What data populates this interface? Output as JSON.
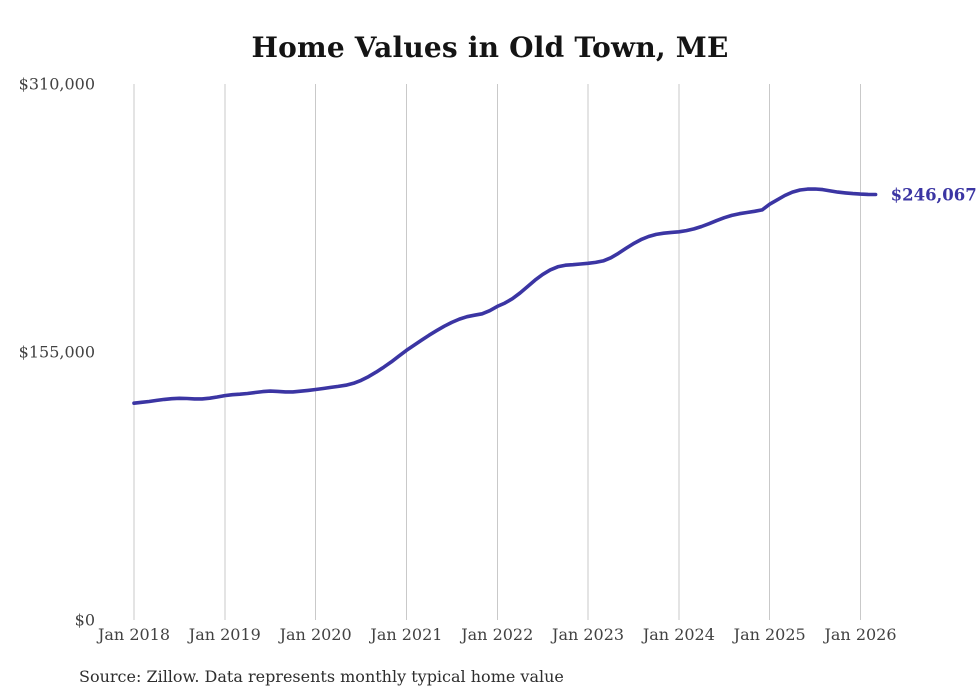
{
  "page": {
    "title": "Home Values in Old Town, ME",
    "source_note": "Source: Zillow. Data represents monthly typical home value"
  },
  "chart_data": {
    "type": "line",
    "title": "Home Values in Old Town, ME",
    "series_name": "Monthly typical home value",
    "x_tick_labels": [
      "Jan 2018",
      "Jan 2019",
      "Jan 2020",
      "Jan 2021",
      "Jan 2022",
      "Jan 2023",
      "Jan 2024",
      "Jan 2025",
      "Jan 2026"
    ],
    "y_ticks": [
      {
        "label": "$0",
        "value": 0
      },
      {
        "label": "$155,000",
        "value": 155000
      },
      {
        "label": "$310,000",
        "value": 310000
      }
    ],
    "ylim": [
      0,
      310000
    ],
    "grid": "vertical-only",
    "grid_color": "#c9c9c9",
    "line_color": "#3b35a3",
    "tick_color": "#424242",
    "end_label": "$246,067",
    "start_month": "Jan 2018",
    "end_month": "Mar 2026",
    "frequency": "monthly",
    "values": [
      125400,
      125900,
      126400,
      127000,
      127600,
      128000,
      128200,
      128100,
      127900,
      127900,
      128300,
      129000,
      129800,
      130300,
      130600,
      131000,
      131600,
      132100,
      132400,
      132200,
      131900,
      131900,
      132300,
      132800,
      133300,
      133900,
      134500,
      135100,
      135800,
      136900,
      138600,
      140800,
      143400,
      146200,
      149300,
      152600,
      155900,
      158900,
      161900,
      164700,
      167400,
      169900,
      172100,
      174000,
      175400,
      176300,
      177100,
      178900,
      181400,
      183300,
      185800,
      189100,
      192800,
      196600,
      199900,
      202500,
      204300,
      205200,
      205500,
      205900,
      206300,
      206800,
      207700,
      209500,
      212000,
      214900,
      217700,
      220000,
      221800,
      223000,
      223700,
      224200,
      224500,
      225200,
      226200,
      227600,
      229200,
      231000,
      232700,
      234000,
      235000,
      235700,
      236400,
      237200,
      240500,
      243000,
      245500,
      247500,
      248700,
      249200,
      249300,
      248900,
      248200,
      247500,
      247000,
      246600,
      246300,
      246150,
      246067
    ]
  }
}
